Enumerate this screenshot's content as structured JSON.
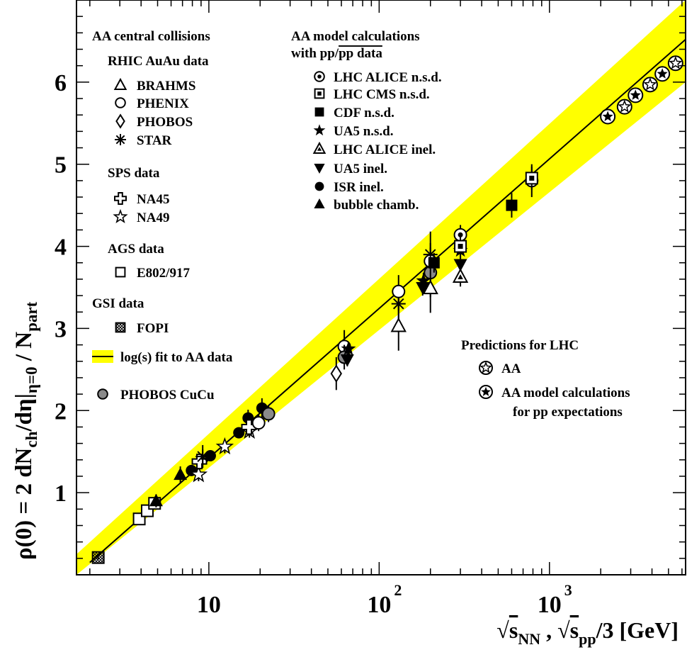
{
  "chart_data": {
    "type": "scatter",
    "x_scale": "log",
    "y_scale": "linear",
    "xlim": [
      1.67,
      6300
    ],
    "ylim": [
      0,
      7
    ],
    "xaxis": {
      "ticks": [
        {
          "value": 10,
          "label": "10",
          "exp": ""
        },
        {
          "value": 100,
          "label": "10",
          "exp": "2"
        },
        {
          "value": 1000,
          "label": "10",
          "exp": "3"
        }
      ],
      "title_parts": [
        "√",
        "s",
        "NN",
        " , ",
        "√",
        "s",
        "pp",
        "/3  [GeV]"
      ]
    },
    "yaxis": {
      "ticks": [
        1,
        2,
        3,
        4,
        5,
        6
      ],
      "title_parts": [
        "ρ(0) = 2 dN",
        "ch",
        "/dη|",
        "η=0",
        " / N",
        "part"
      ]
    },
    "fit": {
      "name": "log(s) fit to AA data",
      "points": [
        [
          2.0,
          0.15
        ],
        [
          6300,
          6.52
        ]
      ],
      "band_low": [
        [
          1.67,
          0.0
        ],
        [
          6300,
          6.0
        ]
      ],
      "band_high": [
        [
          1.67,
          0.25
        ],
        [
          6300,
          7.0
        ]
      ],
      "color": "#ffff00"
    },
    "legend_left": [
      {
        "kind": "heading",
        "text": "AA central collisions"
      },
      {
        "kind": "heading",
        "text": "RHIC AuAu data"
      },
      {
        "kind": "item",
        "marker": "open-triangle",
        "text": "BRAHMS"
      },
      {
        "kind": "item",
        "marker": "open-circle",
        "text": "PHENIX"
      },
      {
        "kind": "item",
        "marker": "open-diamond",
        "text": "PHOBOS"
      },
      {
        "kind": "item",
        "marker": "asterisk",
        "text": "STAR"
      },
      {
        "kind": "heading",
        "text": "SPS data"
      },
      {
        "kind": "item",
        "marker": "open-cross",
        "text": "NA45"
      },
      {
        "kind": "item",
        "marker": "open-star",
        "text": "NA49"
      },
      {
        "kind": "heading",
        "text": "AGS data"
      },
      {
        "kind": "item",
        "marker": "open-square",
        "text": "E802/917"
      },
      {
        "kind": "heading",
        "text": "GSI data"
      },
      {
        "kind": "item",
        "marker": "hatched-square",
        "text": "FOPI"
      },
      {
        "kind": "item",
        "marker": "fit-line",
        "text": "log(s) fit to AA data"
      },
      {
        "kind": "item",
        "marker": "grey-circle",
        "text": "PHOBOS CuCu"
      }
    ],
    "legend_mid": [
      {
        "kind": "heading",
        "text": "AA model calculations"
      },
      {
        "kind": "heading",
        "text": "with pp/pp data"
      },
      {
        "kind": "item",
        "marker": "dot-circle",
        "text": "LHC ALICE n.s.d."
      },
      {
        "kind": "item",
        "marker": "dot-square",
        "text": "LHC CMS n.s.d."
      },
      {
        "kind": "item",
        "marker": "filled-square",
        "text": "CDF n.s.d."
      },
      {
        "kind": "item",
        "marker": "filled-star",
        "text": "UA5 n.s.d."
      },
      {
        "kind": "item",
        "marker": "triangle-in-triangle",
        "text": "LHC ALICE inel."
      },
      {
        "kind": "item",
        "marker": "filled-down-triangle",
        "text": "UA5 inel."
      },
      {
        "kind": "item",
        "marker": "filled-circle",
        "text": "ISR inel."
      },
      {
        "kind": "item",
        "marker": "filled-triangle",
        "text": "bubble chamb."
      }
    ],
    "legend_right": [
      {
        "kind": "heading",
        "text": "Predictions for LHC"
      },
      {
        "kind": "item",
        "marker": "star-in-circle-open",
        "text": "AA"
      },
      {
        "kind": "item",
        "marker": "star-in-circle-filled",
        "text": "AA model calculations"
      },
      {
        "kind": "cont",
        "text": "for pp expectations"
      }
    ],
    "series": [
      {
        "name": "FOPI",
        "marker": "hatched-square",
        "points": [
          [
            2.24,
            0.21,
            0.02
          ]
        ]
      },
      {
        "name": "E802/917",
        "marker": "open-square",
        "points": [
          [
            3.9,
            0.68,
            0.06
          ],
          [
            4.35,
            0.78,
            0.06
          ],
          [
            4.8,
            0.87,
            0.06
          ]
        ]
      },
      {
        "name": "bubble chamb.",
        "marker": "filled-triangle",
        "points": [
          [
            4.9,
            0.9,
            0.08
          ],
          [
            6.8,
            1.22,
            0.1
          ]
        ]
      },
      {
        "name": "ISR inel.",
        "marker": "filled-circle",
        "points": [
          [
            7.9,
            1.27,
            0.06
          ],
          [
            10.2,
            1.45,
            0.06
          ],
          [
            15,
            1.73,
            0.06
          ],
          [
            17,
            1.91,
            0.1
          ],
          [
            20.5,
            2.03,
            0.12
          ]
        ]
      },
      {
        "name": "NA49",
        "marker": "open-star",
        "points": [
          [
            8.7,
            1.22,
            0.08
          ],
          [
            12.4,
            1.56,
            0.08
          ],
          [
            17.3,
            1.75,
            0.08
          ]
        ]
      },
      {
        "name": "NA45",
        "marker": "open-cross",
        "points": [
          [
            8.8,
            1.38,
            0.1
          ],
          [
            17.2,
            1.8,
            0.1
          ]
        ]
      },
      {
        "name": "STAR",
        "marker": "asterisk",
        "points": [
          [
            9.2,
            1.44,
            0.14
          ],
          [
            130,
            3.3,
            0.22
          ],
          [
            200,
            3.9,
            0.28
          ]
        ]
      },
      {
        "name": "PHENIX",
        "marker": "open-circle",
        "points": [
          [
            19.6,
            1.85,
            0.1
          ],
          [
            62.4,
            2.78,
            0.2
          ],
          [
            130,
            3.45,
            0.2
          ],
          [
            200,
            3.82,
            0.22
          ]
        ]
      },
      {
        "name": "PHOBOS CuCu",
        "marker": "grey-circle",
        "points": [
          [
            22.4,
            1.96,
            0.1
          ],
          [
            62.4,
            2.65,
            0.15
          ],
          [
            200,
            3.68,
            0.3
          ]
        ]
      },
      {
        "name": "PHOBOS",
        "marker": "open-diamond",
        "points": [
          [
            56,
            2.45,
            0.2
          ]
        ]
      },
      {
        "name": "BRAHMS",
        "marker": "open-triangle",
        "points": [
          [
            130,
            3.03,
            0.3
          ],
          [
            200,
            3.49,
            0.3
          ]
        ]
      },
      {
        "name": "UA5 inel.",
        "marker": "filled-down-triangle",
        "points": [
          [
            65,
            2.62,
            0.08
          ],
          [
            180,
            3.5,
            0.1
          ],
          [
            300,
            3.78,
            0.1
          ]
        ]
      },
      {
        "name": "UA5 n.s.d.",
        "marker": "filled-star",
        "points": [
          [
            66,
            2.75,
            0.08
          ],
          [
            182,
            3.58,
            0.1
          ],
          [
            300,
            3.95,
            0.1
          ]
        ]
      },
      {
        "name": "LHC ALICE inel.",
        "marker": "triangle-in-triangle",
        "points": [
          [
            300,
            3.63,
            0.12
          ]
        ]
      },
      {
        "name": "CDF n.s.d.",
        "marker": "filled-square",
        "points": [
          [
            210,
            3.8,
            0.12
          ],
          [
            600,
            4.5,
            0.15
          ]
        ]
      },
      {
        "name": "LHC ALICE n.s.d.",
        "marker": "dot-circle",
        "points": [
          [
            300,
            4.14,
            0.12
          ],
          [
            787,
            4.8,
            0.2
          ]
        ]
      },
      {
        "name": "LHC CMS n.s.d.",
        "marker": "dot-square",
        "points": [
          [
            300,
            4.0,
            0.14
          ],
          [
            787,
            4.83,
            0.14
          ]
        ]
      },
      {
        "name": "AA",
        "marker": "star-in-circle-open",
        "points": [
          [
            2760,
            5.7,
            0
          ],
          [
            3900,
            5.97,
            0
          ],
          [
            5500,
            6.23,
            0
          ]
        ]
      },
      {
        "name": "AA model calculations for pp expectations",
        "marker": "star-in-circle-filled",
        "points": [
          [
            2200,
            5.58,
            0
          ],
          [
            3200,
            5.84,
            0
          ],
          [
            4600,
            6.1,
            0
          ]
        ]
      }
    ]
  }
}
